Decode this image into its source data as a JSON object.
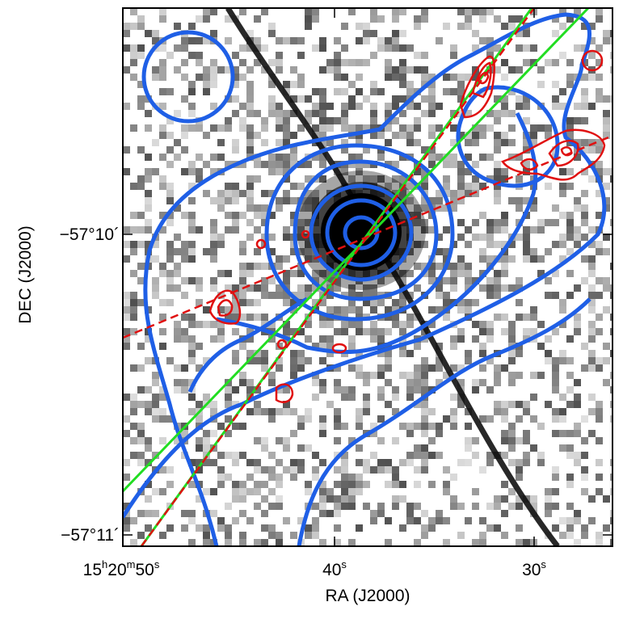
{
  "figure": {
    "x_axis": {
      "title": "RA (J2000)",
      "ticks": [
        {
          "value": "50",
          "hours": "15",
          "minutes": "20",
          "label_pre": "",
          "is_first": true
        },
        {
          "value": "40",
          "label_pre": ""
        },
        {
          "value": "30",
          "label_pre": ""
        }
      ],
      "hour_unit": "h",
      "minute_unit": "m",
      "second_unit": "s"
    },
    "y_axis": {
      "title": "DEC (J2000)",
      "ticks": [
        {
          "label": "−57°10´"
        },
        {
          "label": "−57°11´"
        }
      ]
    },
    "colors": {
      "blue_contour": "#1f5fe6",
      "red_contour": "#e01010",
      "green_line": "#22dd22",
      "red_dashed": "#e01010",
      "frame": "#000000"
    }
  }
}
